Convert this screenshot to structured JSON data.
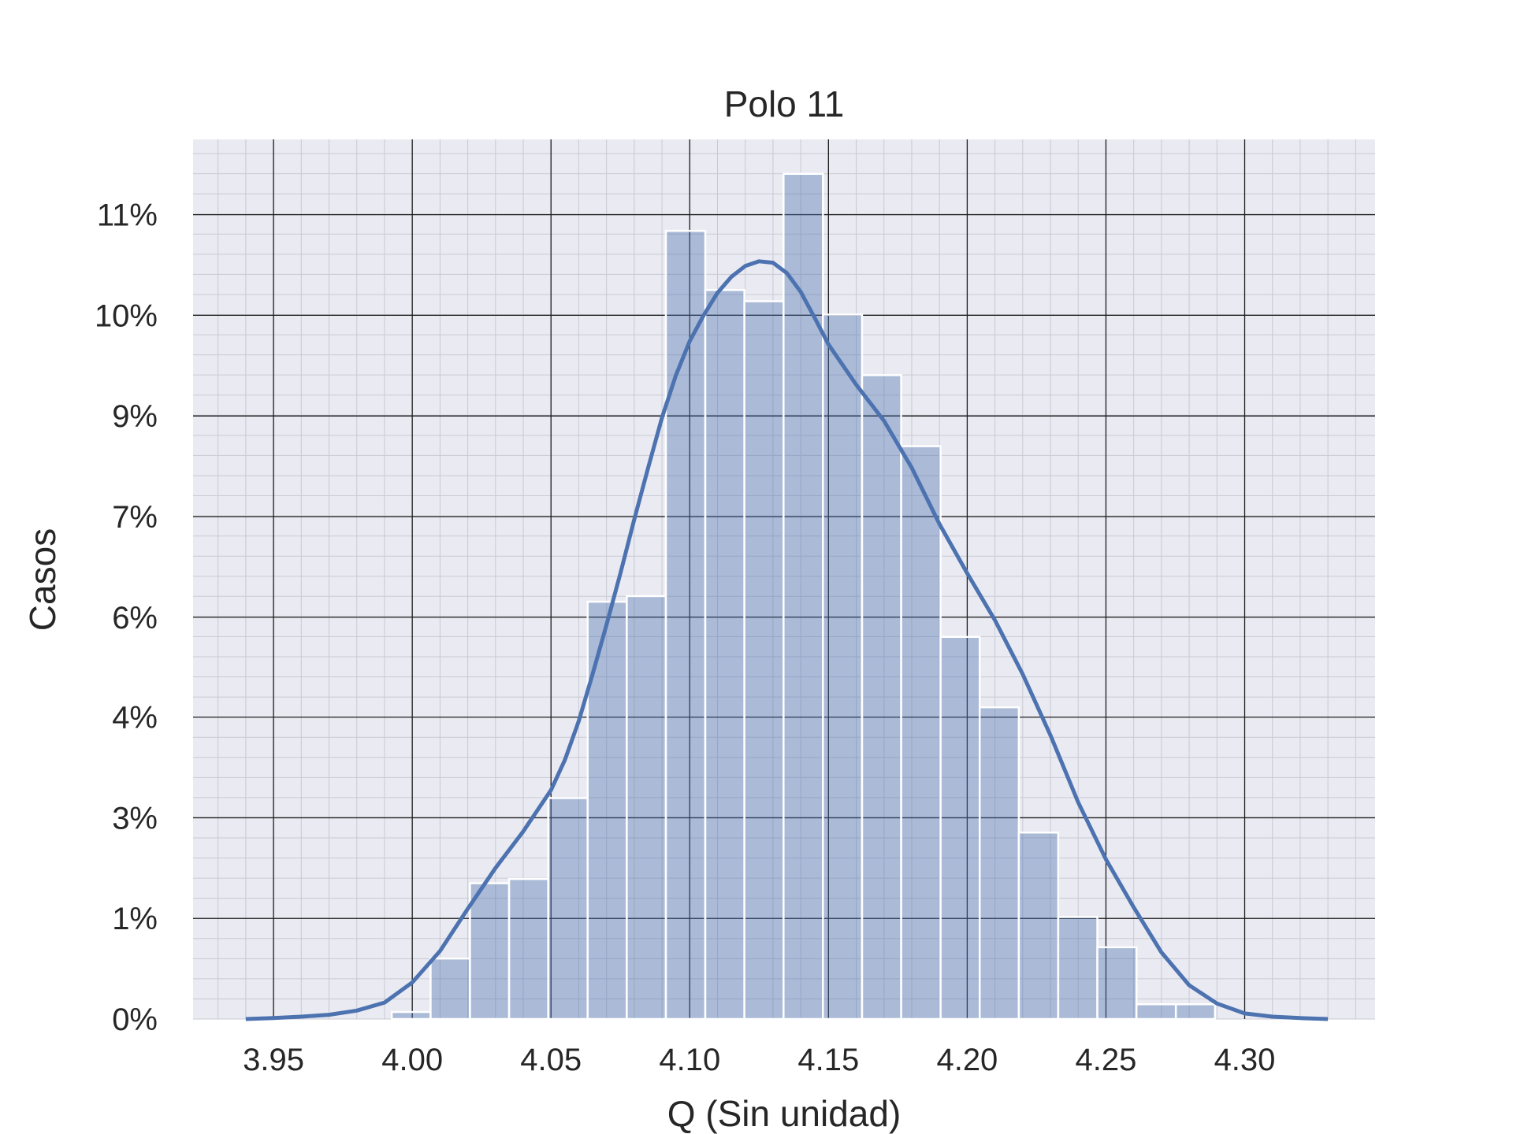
{
  "chart_data": {
    "type": "bar",
    "title": "Polo 11",
    "xlabel": "Q (Sin unidad)",
    "ylabel": "Casos",
    "x_ticks": [
      "3.95",
      "4.00",
      "4.05",
      "4.10",
      "4.15",
      "4.20",
      "4.25",
      "4.30"
    ],
    "y_ticks": [
      "0%",
      "1%",
      "3%",
      "4%",
      "6%",
      "7%",
      "9%",
      "10%",
      "11%"
    ],
    "y_tick_values": [
      0,
      1.43,
      2.86,
      4.29,
      5.71,
      7.14,
      8.57,
      10.0,
      11.43
    ],
    "xlim": [
      3.921,
      4.347
    ],
    "ylim": [
      0,
      12.5
    ],
    "grid": true,
    "minor_grid": true,
    "bar_color": "#4c72b0",
    "bar_alpha": 0.4,
    "line_color": "#4c72b0",
    "background": "#eaeaf2",
    "bin_edges": [
      3.9926,
      4.0066,
      4.0208,
      4.0349,
      4.049,
      4.0632,
      4.0773,
      4.0914,
      4.1056,
      4.1197,
      4.1338,
      4.148,
      4.1621,
      4.1762,
      4.1904,
      4.2045,
      4.2186,
      4.2328,
      4.2469,
      4.261,
      4.2752,
      4.2893
    ],
    "bin_values": [
      0.1,
      0.86,
      1.93,
      1.99,
      3.14,
      5.93,
      6.01,
      11.2,
      10.36,
      10.2,
      12.01,
      10.01,
      9.15,
      8.14,
      5.43,
      4.43,
      2.65,
      1.45,
      1.02,
      0.21,
      0.21
    ],
    "kde_x": [
      3.94,
      3.95,
      3.96,
      3.97,
      3.98,
      3.99,
      4.0,
      4.01,
      4.02,
      4.03,
      4.04,
      4.05,
      4.055,
      4.06,
      4.065,
      4.07,
      4.075,
      4.08,
      4.085,
      4.09,
      4.095,
      4.1,
      4.105,
      4.11,
      4.115,
      4.12,
      4.125,
      4.13,
      4.135,
      4.14,
      4.145,
      4.15,
      4.16,
      4.17,
      4.18,
      4.19,
      4.2,
      4.21,
      4.22,
      4.23,
      4.24,
      4.25,
      4.26,
      4.27,
      4.28,
      4.29,
      4.3,
      4.31,
      4.32,
      4.33
    ],
    "kde_y": [
      0.0,
      0.02,
      0.05,
      0.09,
      0.18,
      0.35,
      0.78,
      1.45,
      2.35,
      3.22,
      4.0,
      4.88,
      5.52,
      6.35,
      7.35,
      8.4,
      9.5,
      10.65,
      11.75,
      12.82,
      13.72,
      14.45,
      15.0,
      15.48,
      15.82,
      16.05,
      16.15,
      16.12,
      15.9,
      15.5,
      14.95,
      14.38,
      13.52,
      12.75,
      11.75,
      10.55,
      9.5,
      8.5,
      7.35,
      6.05,
      4.62,
      3.4,
      2.38,
      1.42,
      0.72,
      0.33,
      0.12,
      0.05,
      0.02,
      0.0
    ],
    "kde_y_scale": 0.6667
  }
}
